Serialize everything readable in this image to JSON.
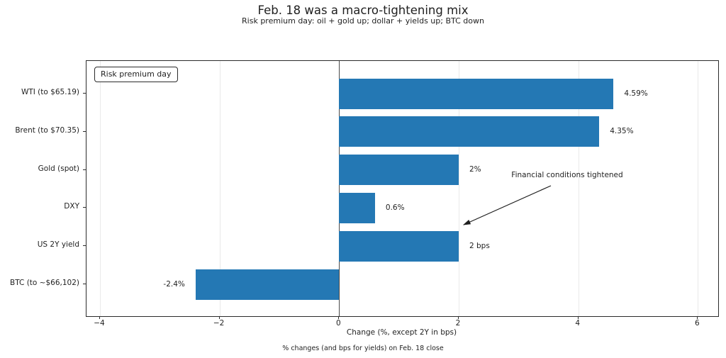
{
  "chart_data": {
    "type": "bar",
    "orientation": "horizontal",
    "title": "Feb. 18 was a macro-tightening mix",
    "subtitle": "Risk premium day: oil + gold up; dollar + yields up; BTC down",
    "categories": [
      "WTI (to $65.19)",
      "Brent (to $70.35)",
      "Gold (spot)",
      "DXY",
      "US 2Y yield",
      "BTC (to ~$66,102)"
    ],
    "values": [
      4.59,
      4.35,
      2,
      0.6,
      2,
      -2.4
    ],
    "value_labels": [
      "4.59%",
      "4.35%",
      "2%",
      "0.6%",
      "2 bps",
      "-2.4%"
    ],
    "xlabel": "Change (%, except 2Y in bps)",
    "footnote": "% changes (and bps for yields) on Feb. 18 close",
    "xlim": [
      -4.225,
      6.34
    ],
    "xticks": [
      -4,
      -2,
      0,
      2,
      4,
      6
    ],
    "xtick_labels": [
      "−4",
      "−2",
      "0",
      "2",
      "4",
      "6"
    ],
    "grid": true,
    "legend_position": "upper left",
    "legend_label": "Risk premium day",
    "annotation_text": "Financial conditions tightened",
    "bar_color": "#2478b4",
    "grid_color": "#e9e9e9",
    "zero_line_color": "#4a4a4a"
  }
}
